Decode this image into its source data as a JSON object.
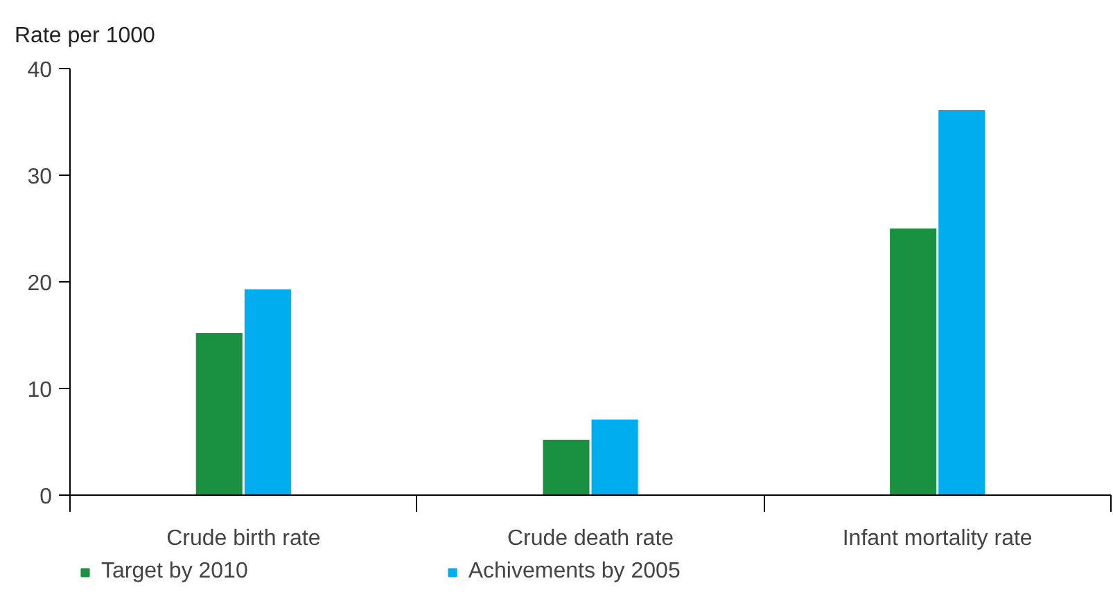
{
  "chart_data": {
    "type": "bar",
    "ylabel": "Rate per 1000",
    "categories": [
      "Crude birth rate",
      "Crude death rate",
      "Infant mortality rate"
    ],
    "series": [
      {
        "name": "Target by 2010",
        "color": "#1a9140",
        "values": [
          15.2,
          5.2,
          25
        ]
      },
      {
        "name": "Achivements by 2005",
        "color": "#00aeef",
        "values": [
          19.3,
          7.1,
          36.1
        ]
      }
    ],
    "ylim": [
      0,
      40
    ],
    "yticks": [
      0,
      10,
      20,
      30,
      40
    ],
    "grid": false,
    "legend": "bottom"
  }
}
